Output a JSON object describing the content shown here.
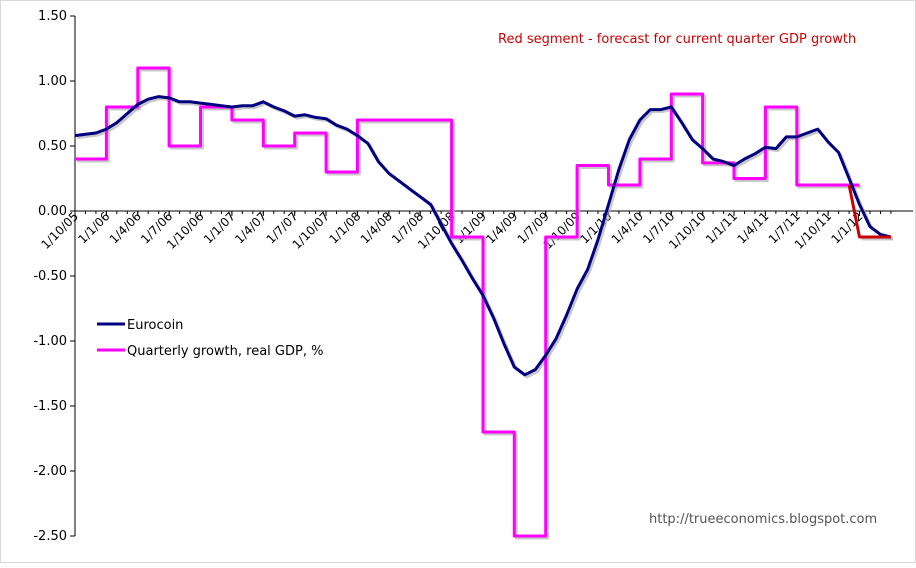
{
  "chart_data": {
    "type": "line",
    "title": "",
    "xlabel": "",
    "ylabel": "",
    "ylim": [
      -2.5,
      1.5
    ],
    "yticks": [
      "1.50",
      "1.00",
      "0.50",
      "0.00",
      "-0.50",
      "-1.00",
      "-1.50",
      "-2.00",
      "-2.50"
    ],
    "ytick_values": [
      1.5,
      1.0,
      0.5,
      0.0,
      -0.5,
      -1.0,
      -1.5,
      -2.0,
      -2.5
    ],
    "x_month_range": [
      0,
      76
    ],
    "xticks": [
      {
        "label": "1/10/05",
        "m": 0
      },
      {
        "label": "1/1/06",
        "m": 3
      },
      {
        "label": "1/4/06",
        "m": 6
      },
      {
        "label": "1/7/06",
        "m": 9
      },
      {
        "label": "1/10/06",
        "m": 12
      },
      {
        "label": "1/1/07",
        "m": 15
      },
      {
        "label": "1/4/07",
        "m": 18
      },
      {
        "label": "1/7/07",
        "m": 21
      },
      {
        "label": "1/10/07",
        "m": 24
      },
      {
        "label": "1/1/08",
        "m": 27
      },
      {
        "label": "1/4/08",
        "m": 30
      },
      {
        "label": "1/7/08",
        "m": 33
      },
      {
        "label": "1/10/08",
        "m": 36
      },
      {
        "label": "1/1/09",
        "m": 39
      },
      {
        "label": "1/4/09",
        "m": 42
      },
      {
        "label": "1/7/09",
        "m": 45
      },
      {
        "label": "1/10/09",
        "m": 48
      },
      {
        "label": "1/1/10",
        "m": 51
      },
      {
        "label": "1/4/10",
        "m": 54
      },
      {
        "label": "1/7/10",
        "m": 57
      },
      {
        "label": "1/10/10",
        "m": 60
      },
      {
        "label": "1/1/11",
        "m": 63
      },
      {
        "label": "1/4/11",
        "m": 66
      },
      {
        "label": "1/7/11",
        "m": 69
      },
      {
        "label": "1/10/11",
        "m": 72
      },
      {
        "label": "1/1/12",
        "m": 75
      }
    ],
    "legend": [
      "Eurocoin",
      "Quarterly growth, real GDP, %"
    ],
    "legend_position": "left",
    "annotation": "Red segment - forecast for current quarter GDP growth",
    "source": "http://trueeconomics.blogspot.com",
    "colors": {
      "eurocoin": "#000080",
      "gdp": "#ff00ff",
      "forecast": "#cc0000",
      "shadow": "#b0b0b0"
    },
    "series": [
      {
        "name": "Eurocoin",
        "points": [
          [
            0,
            0.58
          ],
          [
            1,
            0.59
          ],
          [
            2,
            0.6
          ],
          [
            3,
            0.63
          ],
          [
            4,
            0.68
          ],
          [
            5,
            0.75
          ],
          [
            6,
            0.82
          ],
          [
            7,
            0.86
          ],
          [
            8,
            0.88
          ],
          [
            9,
            0.87
          ],
          [
            10,
            0.84
          ],
          [
            11,
            0.84
          ],
          [
            12,
            0.83
          ],
          [
            13,
            0.82
          ],
          [
            14,
            0.81
          ],
          [
            15,
            0.8
          ],
          [
            16,
            0.81
          ],
          [
            17,
            0.81
          ],
          [
            18,
            0.84
          ],
          [
            19,
            0.8
          ],
          [
            20,
            0.77
          ],
          [
            21,
            0.73
          ],
          [
            22,
            0.74
          ],
          [
            23,
            0.72
          ],
          [
            24,
            0.71
          ],
          [
            25,
            0.66
          ],
          [
            26,
            0.63
          ],
          [
            27,
            0.58
          ],
          [
            28,
            0.52
          ],
          [
            29,
            0.38
          ],
          [
            30,
            0.29
          ],
          [
            31,
            0.23
          ],
          [
            32,
            0.17
          ],
          [
            33,
            0.11
          ],
          [
            34,
            0.05
          ],
          [
            35,
            -0.1
          ],
          [
            36,
            -0.25
          ],
          [
            37,
            -0.38
          ],
          [
            38,
            -0.52
          ],
          [
            39,
            -0.65
          ],
          [
            40,
            -0.82
          ],
          [
            41,
            -1.02
          ],
          [
            42,
            -1.2
          ],
          [
            43,
            -1.26
          ],
          [
            44,
            -1.22
          ],
          [
            45,
            -1.11
          ],
          [
            46,
            -0.98
          ],
          [
            47,
            -0.8
          ],
          [
            48,
            -0.6
          ],
          [
            49,
            -0.45
          ],
          [
            50,
            -0.22
          ],
          [
            51,
            0.05
          ],
          [
            52,
            0.32
          ],
          [
            53,
            0.55
          ],
          [
            54,
            0.7
          ],
          [
            55,
            0.78
          ],
          [
            56,
            0.78
          ],
          [
            57,
            0.8
          ],
          [
            58,
            0.68
          ],
          [
            59,
            0.55
          ],
          [
            60,
            0.48
          ],
          [
            61,
            0.4
          ],
          [
            62,
            0.38
          ],
          [
            63,
            0.35
          ],
          [
            64,
            0.4
          ],
          [
            65,
            0.44
          ],
          [
            66,
            0.49
          ],
          [
            67,
            0.48
          ],
          [
            68,
            0.57
          ],
          [
            69,
            0.57
          ],
          [
            70,
            0.6
          ],
          [
            71,
            0.63
          ],
          [
            72,
            0.53
          ],
          [
            73,
            0.45
          ],
          [
            74,
            0.25
          ],
          [
            75,
            0.05
          ],
          [
            76,
            -0.12
          ],
          [
            77,
            -0.18
          ],
          [
            78,
            -0.2
          ]
        ]
      },
      {
        "name": "Quarterly growth, real GDP, %",
        "steps": [
          [
            0,
            3,
            0.4
          ],
          [
            3,
            6,
            0.8
          ],
          [
            6,
            9,
            1.1
          ],
          [
            9,
            12,
            0.5
          ],
          [
            12,
            15,
            0.8
          ],
          [
            15,
            18,
            0.7
          ],
          [
            18,
            21,
            0.5
          ],
          [
            21,
            24,
            0.6
          ],
          [
            24,
            27,
            0.3
          ],
          [
            27,
            36,
            0.7
          ],
          [
            36,
            39,
            -0.2
          ],
          [
            39,
            42,
            -1.7
          ],
          [
            42,
            45,
            -2.5
          ],
          [
            45,
            48,
            -0.2
          ],
          [
            48,
            51,
            0.35
          ],
          [
            51,
            54,
            0.2
          ],
          [
            54,
            57,
            0.4
          ],
          [
            57,
            60,
            0.9
          ],
          [
            60,
            63,
            0.37
          ],
          [
            63,
            66,
            0.25
          ],
          [
            66,
            69,
            0.8
          ],
          [
            69,
            75,
            0.2
          ]
        ]
      },
      {
        "name": "Forecast",
        "steps": [
          [
            75,
            78,
            -0.2
          ]
        ]
      }
    ]
  }
}
